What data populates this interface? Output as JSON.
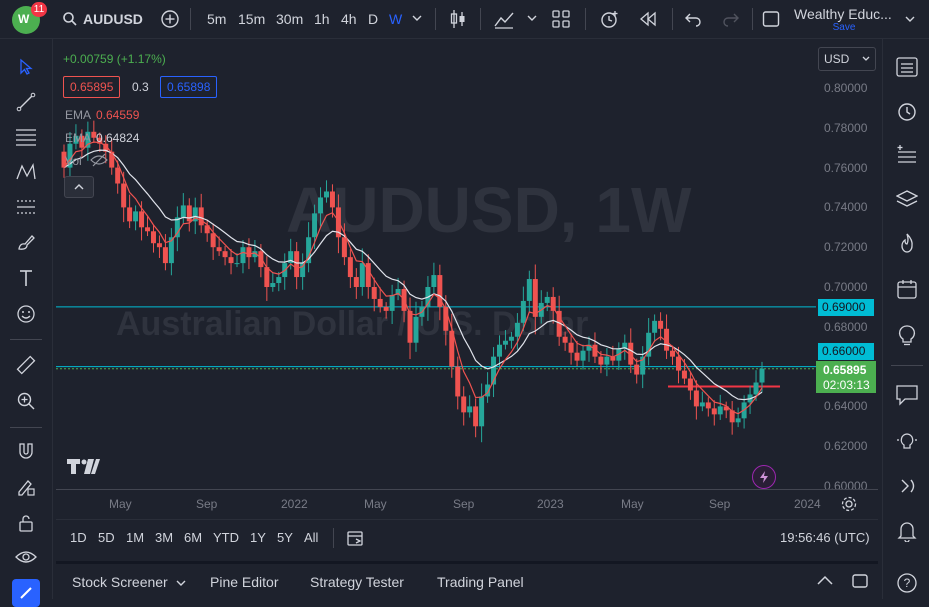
{
  "header": {
    "notification_count": "11",
    "symbol": "AUDUSD",
    "intervals": [
      "5m",
      "15m",
      "30m",
      "1h",
      "4h",
      "D",
      "W"
    ],
    "active_interval": "W",
    "layout_name": "Wealthy Educ...",
    "save_label": "Save"
  },
  "legend": {
    "change": "+0.00759 (+1.17%)",
    "bid": "0.65895",
    "spread": "0.3",
    "ask": "0.65898",
    "ema1_label": "EMA",
    "ema1_value": "0.64559",
    "ema2_label": "EMA",
    "ema2_value": "0.64824",
    "vol_label": "Vol"
  },
  "watermark": {
    "symbol": "AUDUSD, 1W",
    "description": "Australian Dollar / U.S. Dollar"
  },
  "price_axis": {
    "currency": "USD",
    "ticks": [
      "0.80000",
      "0.78000",
      "0.76000",
      "0.74000",
      "0.72000",
      "0.70000",
      "0.68000",
      "0.66000",
      "0.64000",
      "0.62000",
      "0.60000"
    ],
    "line_label_upper": "0.69000",
    "line_label_lower": "0.66000",
    "last_price": "0.65895",
    "countdown": "02:03:13"
  },
  "time_axis": {
    "ticks": [
      "May",
      "Sep",
      "2022",
      "May",
      "Sep",
      "2023",
      "May",
      "Sep",
      "2024"
    ]
  },
  "ranges": [
    "1D",
    "5D",
    "1M",
    "3M",
    "6M",
    "YTD",
    "1Y",
    "5Y",
    "All"
  ],
  "clock": "19:56:46 (UTC)",
  "panels": [
    "Stock Screener",
    "Pine Editor",
    "Strategy Tester",
    "Trading Panel"
  ],
  "colors": {
    "up": "#26a69a",
    "down": "#ef5350",
    "accent": "#2962ff",
    "cyan": "#00bcd4",
    "last": "#4caf50"
  },
  "chart_data": {
    "type": "candlestick",
    "symbol": "AUDUSD",
    "timeframe": "1W",
    "ylim": [
      0.6,
      0.8
    ],
    "x_ticks": [
      "May",
      "Sep",
      "2022",
      "May",
      "Sep",
      "2023",
      "May",
      "Sep",
      "2024"
    ],
    "horizontal_lines": [
      0.69,
      0.66
    ],
    "support_segment": 0.65,
    "close_series": [
      0.76,
      0.772,
      0.776,
      0.77,
      0.778,
      0.775,
      0.772,
      0.768,
      0.76,
      0.752,
      0.74,
      0.733,
      0.738,
      0.73,
      0.728,
      0.722,
      0.72,
      0.712,
      0.725,
      0.735,
      0.741,
      0.733,
      0.74,
      0.731,
      0.727,
      0.72,
      0.718,
      0.715,
      0.712,
      0.712,
      0.72,
      0.715,
      0.718,
      0.71,
      0.7,
      0.702,
      0.705,
      0.712,
      0.718,
      0.705,
      0.712,
      0.725,
      0.737,
      0.745,
      0.748,
      0.74,
      0.725,
      0.715,
      0.705,
      0.7,
      0.712,
      0.7,
      0.694,
      0.69,
      0.688,
      0.696,
      0.699,
      0.688,
      0.672,
      0.685,
      0.69,
      0.7,
      0.706,
      0.69,
      0.678,
      0.66,
      0.645,
      0.637,
      0.64,
      0.63,
      0.645,
      0.651,
      0.665,
      0.671,
      0.673,
      0.675,
      0.682,
      0.693,
      0.704,
      0.685,
      0.692,
      0.695,
      0.688,
      0.675,
      0.672,
      0.667,
      0.663,
      0.668,
      0.671,
      0.665,
      0.661,
      0.665,
      0.663,
      0.669,
      0.672,
      0.661,
      0.656,
      0.665,
      0.677,
      0.683,
      0.679,
      0.668,
      0.665,
      0.658,
      0.654,
      0.648,
      0.64,
      0.642,
      0.639,
      0.636,
      0.64,
      0.638,
      0.632,
      0.634,
      0.642,
      0.646,
      0.652,
      0.659
    ],
    "ema_fast_last": 0.64559,
    "ema_slow_last": 0.64824,
    "last_close": 0.65895
  }
}
